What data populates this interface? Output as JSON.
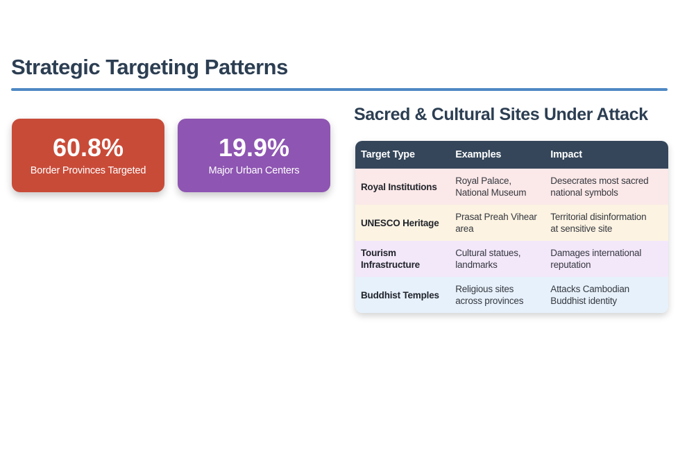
{
  "page": {
    "background": "#ffffff"
  },
  "header": {
    "title": "Strategic Targeting Patterns",
    "title_color": "#2c3e52",
    "rule_color": "#4e88c4"
  },
  "stat_cards": [
    {
      "value": "60.8%",
      "label": "Border Provinces Targeted",
      "bg": "#c84b38"
    },
    {
      "value": "19.9%",
      "label": "Major Urban Centers",
      "bg": "#8e55b2"
    }
  ],
  "sites_section": {
    "heading": "Sacred & Cultural Sites Under Attack",
    "heading_color": "#2c3e52",
    "table": {
      "header_bg": "#35465a",
      "header_text_color": "#ffffff",
      "columns": [
        "Target Type",
        "Examples",
        "Impact"
      ],
      "rows": [
        {
          "bg": "#fbe8e8",
          "target_type": "Royal Institutions",
          "examples": "Royal Palace,\nNational Museum",
          "impact": "Desecrates most sacred\nnational symbols"
        },
        {
          "bg": "#fcf3e2",
          "target_type": "UNESCO Heritage",
          "examples": "Prasat Preah Vihear\narea",
          "impact": "Territorial disinformation\nat sensitive site"
        },
        {
          "bg": "#f3e7fa",
          "target_type": "Tourism\nInfrastructure",
          "examples": "Cultural statues,\nlandmarks",
          "impact": "Damages international\nreputation"
        },
        {
          "bg": "#e7f1fb",
          "target_type": "Buddhist Temples",
          "examples": "Religious sites\nacross provinces",
          "impact": "Attacks Cambodian\nBuddhist identity"
        }
      ]
    }
  }
}
